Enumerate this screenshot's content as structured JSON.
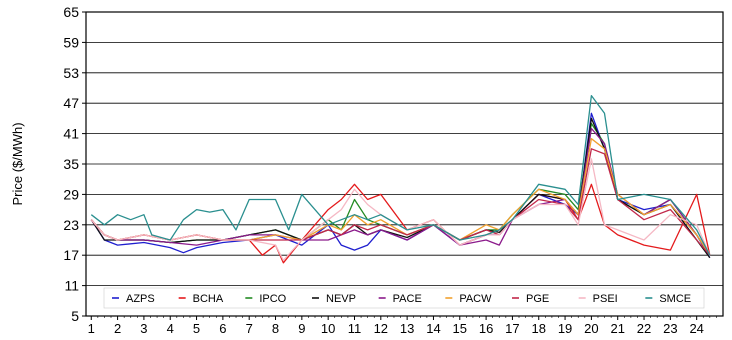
{
  "chart_data": {
    "type": "line",
    "ylabel": "Price ($/MWh)",
    "xlabel": "",
    "title": "",
    "ylim": [
      5,
      65
    ],
    "yticks": [
      5,
      11,
      17,
      23,
      29,
      35,
      41,
      47,
      53,
      59,
      65
    ],
    "xlim": [
      0.8,
      25
    ],
    "xticks": [
      "1",
      "2",
      "3",
      "4",
      "5",
      "6",
      "7",
      "8",
      "9",
      "10",
      "11",
      "12",
      "13",
      "14",
      "15",
      "16",
      "17",
      "18",
      "19",
      "20",
      "21",
      "22",
      "23",
      "24"
    ],
    "grid": "horizontal",
    "legend_position": "bottom-inside",
    "series": [
      {
        "name": "AZPS",
        "color": "#1f1fcf",
        "x": [
          1,
          1.5,
          2,
          3,
          4,
          4.5,
          5,
          6,
          7,
          8,
          9,
          10,
          10.5,
          11,
          11.5,
          12,
          13,
          14,
          15,
          16,
          16.5,
          17,
          18,
          19,
          19.5,
          20,
          20.5,
          21,
          22,
          23,
          24,
          24.5
        ],
        "y": [
          24,
          20,
          19,
          19.5,
          18.5,
          17.5,
          18.5,
          19.5,
          20,
          21,
          19,
          23,
          19,
          18,
          19,
          22,
          20,
          23,
          19,
          21,
          21,
          24,
          29,
          27,
          25,
          45,
          38,
          28,
          26,
          27,
          21,
          16.5
        ]
      },
      {
        "name": "BCHA",
        "color": "#e41a1c",
        "x": [
          1,
          1.5,
          2,
          3,
          4,
          5,
          6,
          7,
          7.5,
          8,
          8.3,
          9,
          10,
          10.5,
          11,
          11.5,
          12,
          13,
          14,
          15,
          16,
          16.5,
          17,
          18,
          19,
          19.5,
          20,
          20.5,
          21,
          22,
          23,
          24,
          24.5
        ],
        "y": [
          24,
          21,
          20,
          21,
          20,
          21,
          20,
          20,
          17,
          19,
          15.5,
          20,
          26,
          28,
          31,
          28,
          29,
          22,
          24,
          19,
          21,
          22,
          24,
          29,
          28,
          24,
          31,
          23,
          21,
          19,
          18,
          29,
          17
        ]
      },
      {
        "name": "IPCO",
        "color": "#238b23",
        "x": [
          1,
          1.5,
          2,
          3,
          4,
          5,
          6,
          7,
          8,
          9,
          10,
          10.5,
          11,
          11.5,
          12,
          13,
          14,
          15,
          16,
          16.5,
          17,
          18,
          19,
          19.5,
          20,
          20.5,
          21,
          22,
          23,
          24,
          24.5
        ],
        "y": [
          24,
          21,
          20,
          20,
          19.5,
          20,
          20,
          21,
          22,
          20,
          24,
          22,
          28,
          24,
          23,
          21,
          23,
          20,
          22,
          22,
          25,
          30,
          29,
          26,
          43,
          39,
          28,
          25,
          28,
          21,
          17
        ]
      },
      {
        "name": "NEVP",
        "color": "#111111",
        "x": [
          1,
          1.5,
          2,
          3,
          4,
          5,
          6,
          7,
          8,
          9,
          10,
          10.5,
          11,
          11.5,
          12,
          13,
          14,
          15,
          16,
          16.5,
          17,
          18,
          19,
          19.5,
          20,
          20.5,
          21,
          22,
          23,
          24,
          24.5
        ],
        "y": [
          24,
          20,
          20,
          20,
          19.5,
          20,
          20,
          21,
          22,
          20,
          22,
          21,
          23,
          21,
          22,
          20.5,
          23,
          20,
          22,
          21.5,
          24,
          29,
          28,
          25,
          44,
          38,
          28,
          25,
          27,
          20,
          16.5
        ]
      },
      {
        "name": "PACE",
        "color": "#8b1a8b",
        "x": [
          1,
          1.5,
          2,
          3,
          4,
          5,
          6,
          7,
          8,
          9,
          10,
          10.5,
          11,
          11.5,
          12,
          13,
          14,
          15,
          16,
          16.5,
          17,
          18,
          19,
          19.5,
          20,
          20.5,
          21,
          22,
          23,
          24,
          24.5
        ],
        "y": [
          24,
          21,
          20,
          20,
          19.5,
          19,
          20,
          21,
          21,
          20,
          20,
          21,
          22,
          21,
          22,
          20,
          23,
          19,
          20,
          19,
          24,
          27,
          28,
          25,
          42,
          39,
          29,
          25,
          28,
          21,
          17
        ]
      },
      {
        "name": "PACW",
        "color": "#f2a12e",
        "x": [
          1,
          1.5,
          2,
          3,
          4,
          5,
          6,
          7,
          8,
          9,
          10,
          10.5,
          11,
          11.5,
          12,
          13,
          14,
          15,
          16,
          16.5,
          17,
          18,
          19,
          19.5,
          20,
          20.5,
          21,
          22,
          23,
          24,
          24.5
        ],
        "y": [
          24,
          21,
          20,
          21,
          20,
          21,
          20,
          20,
          21,
          20,
          23,
          22,
          25,
          23,
          24,
          21,
          23,
          20,
          23,
          22,
          25,
          30,
          28,
          25,
          40,
          38,
          29,
          25,
          27,
          21,
          17
        ]
      },
      {
        "name": "PGE",
        "color": "#c2284a",
        "x": [
          1,
          1.5,
          2,
          3,
          4,
          5,
          6,
          7,
          8,
          9,
          10,
          10.5,
          11,
          11.5,
          12,
          13,
          14,
          15,
          16,
          16.5,
          17,
          18,
          19,
          19.5,
          20,
          20.5,
          21,
          22,
          23,
          24,
          24.5
        ],
        "y": [
          24,
          21,
          20,
          21,
          20,
          21,
          20,
          20,
          20,
          20,
          22,
          21,
          23,
          22,
          23,
          21,
          23,
          20,
          22,
          21,
          24,
          28,
          27,
          24,
          38,
          37,
          28,
          24,
          26,
          20,
          17
        ]
      },
      {
        "name": "PSEI",
        "color": "#f5b8c4",
        "x": [
          1,
          1.5,
          2,
          3,
          4,
          5,
          6,
          7,
          8,
          8.3,
          9,
          10,
          10.5,
          11,
          11.5,
          12,
          13,
          14,
          15,
          16,
          16.5,
          17,
          18,
          19,
          19.5,
          20,
          20.5,
          21,
          22,
          23,
          24,
          24.5
        ],
        "y": [
          24,
          21,
          20,
          21,
          20,
          21,
          20,
          20,
          19,
          16,
          20,
          24,
          26,
          30,
          27,
          25,
          22,
          24,
          19,
          21,
          21,
          24,
          27,
          27,
          23,
          36,
          23,
          22,
          20,
          25,
          23,
          17
        ]
      },
      {
        "name": "SMCE",
        "color": "#2a8f8f",
        "x": [
          1,
          1.5,
          2,
          2.5,
          3,
          3.3,
          4,
          4.5,
          5,
          5.5,
          6,
          6.5,
          7,
          7.5,
          8,
          8.5,
          9,
          10,
          10.5,
          11,
          11.5,
          12,
          13,
          14,
          15,
          16,
          16.5,
          17,
          18,
          19,
          19.5,
          20,
          20.5,
          21,
          22,
          23,
          24,
          24.5
        ],
        "y": [
          25,
          23,
          25,
          24,
          25,
          21,
          20,
          24,
          26,
          25.5,
          26,
          22,
          28,
          28,
          28,
          22,
          29,
          23,
          24,
          25,
          24,
          25,
          22,
          23,
          20,
          21,
          22,
          24,
          31,
          30,
          27,
          48.5,
          45,
          28,
          29,
          28,
          22,
          17
        ]
      }
    ]
  }
}
